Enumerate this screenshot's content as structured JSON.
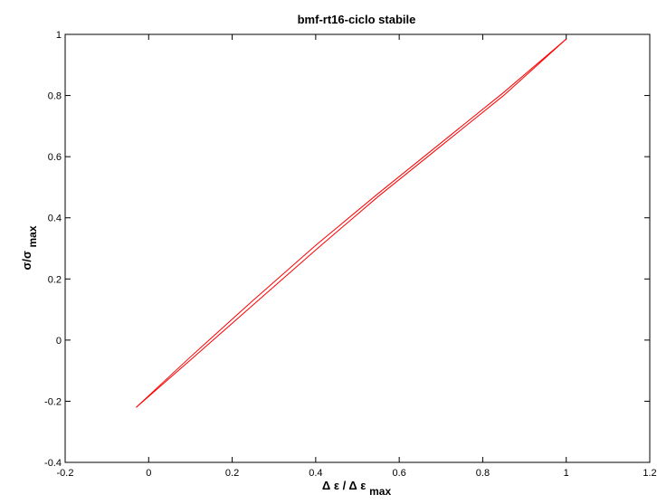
{
  "chart_data": {
    "type": "line",
    "title": "bmf-rt16-ciclo stabile",
    "xlabel": {
      "main": "Δ ε / Δ ε",
      "sub": "max"
    },
    "ylabel": {
      "main": "σ/σ",
      "sub": "max"
    },
    "xlim": [
      -0.2,
      1.2
    ],
    "ylim": [
      -0.4,
      1.0
    ],
    "xticks": [
      -0.2,
      0,
      0.2,
      0.4,
      0.6,
      0.8,
      1,
      1.2
    ],
    "yticks": [
      -0.4,
      -0.2,
      0,
      0.2,
      0.4,
      0.6,
      0.8,
      1
    ],
    "xtick_labels": [
      "-0.2",
      "0",
      "0.2",
      "0.4",
      "0.6",
      "0.8",
      "1",
      "1.2"
    ],
    "ytick_labels": [
      "-0.4",
      "-0.2",
      "0",
      "0.2",
      "0.4",
      "0.6",
      "0.8",
      "1"
    ],
    "grid": false,
    "series": [
      {
        "color": "#ff0000",
        "x": [
          -0.03,
          0.1,
          0.25,
          0.4,
          0.55,
          0.7,
          0.85,
          1.0
        ],
        "y": [
          -0.22,
          -0.065,
          0.115,
          0.295,
          0.47,
          0.635,
          0.8,
          0.985
        ]
      },
      {
        "color": "#ff0000",
        "x": [
          1.0,
          0.85,
          0.7,
          0.55,
          0.4,
          0.25,
          0.1,
          -0.03
        ],
        "y": [
          0.985,
          0.81,
          0.645,
          0.48,
          0.31,
          0.13,
          -0.055,
          -0.22
        ]
      }
    ]
  }
}
